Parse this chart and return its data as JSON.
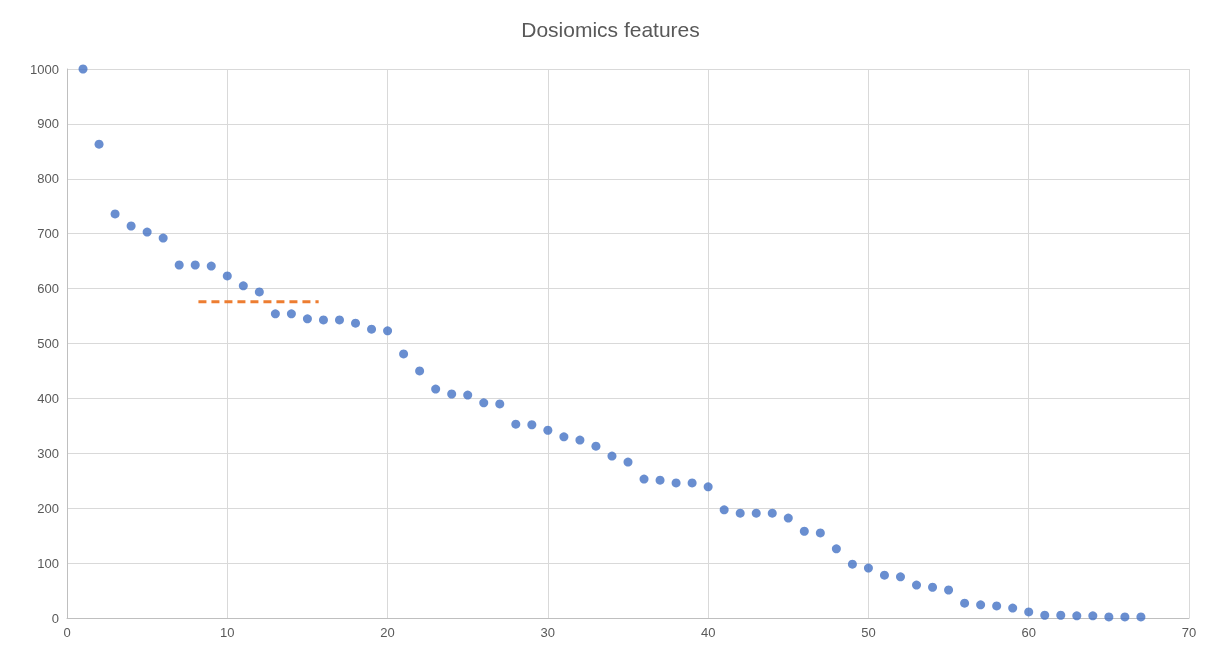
{
  "chart_data": {
    "type": "scatter",
    "title": "Dosiomics features",
    "marker": "circle",
    "grid": true,
    "xlim": [
      0,
      70
    ],
    "xticks": [
      0,
      10,
      20,
      30,
      40,
      50,
      60,
      70
    ],
    "ylim": [
      0,
      1000
    ],
    "yticks": [
      0,
      100,
      200,
      300,
      400,
      500,
      600,
      700,
      800,
      900,
      1000
    ],
    "series": [
      {
        "color": "#4472c4",
        "x": [
          1,
          2,
          3,
          4,
          5,
          6,
          7,
          8,
          9,
          10,
          11,
          12,
          13,
          14,
          15,
          16,
          17,
          18,
          19,
          20,
          21,
          22,
          23,
          24,
          25,
          26,
          27,
          28,
          29,
          30,
          31,
          32,
          33,
          34,
          35,
          36,
          37,
          38,
          39,
          40,
          41,
          42,
          43,
          44,
          45,
          46,
          47,
          48,
          49,
          50,
          51,
          52,
          53,
          54,
          55,
          56,
          57,
          58,
          59,
          60,
          61,
          62,
          63,
          64,
          65,
          66,
          67
        ],
        "values": [
          1000,
          863,
          736,
          714,
          703,
          692,
          643,
          643,
          641,
          623,
          605,
          594,
          554,
          554,
          545,
          543,
          543,
          537,
          526,
          523,
          481,
          450,
          417,
          408,
          406,
          392,
          390,
          353,
          352,
          342,
          330,
          324,
          313,
          295,
          284,
          253,
          251,
          246,
          246,
          239,
          197,
          191,
          191,
          191,
          182,
          158,
          155,
          126,
          98,
          91,
          78,
          75,
          60,
          56,
          51,
          27,
          24,
          22,
          18,
          11,
          5,
          5,
          4,
          4,
          2,
          2,
          2
        ]
      },
      {
        "type": "line",
        "color": "#ed7d31",
        "line_style": "dashed",
        "marker": "none",
        "x": [
          8.2,
          15.7
        ],
        "values": [
          576,
          576
        ]
      }
    ]
  }
}
